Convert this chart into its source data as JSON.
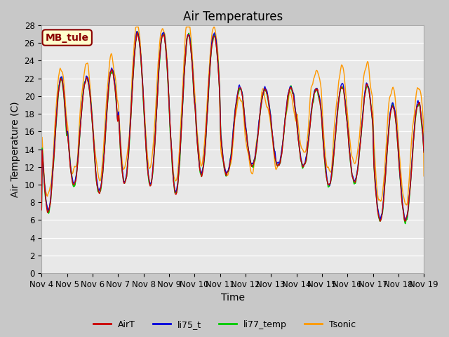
{
  "title": "Air Temperatures",
  "ylabel": "Air Temperature (C)",
  "xlabel": "Time",
  "ylim": [
    0,
    28
  ],
  "yticks": [
    0,
    2,
    4,
    6,
    8,
    10,
    12,
    14,
    16,
    18,
    20,
    22,
    24,
    26,
    28
  ],
  "xtick_labels": [
    "Nov 4",
    "Nov 5",
    "Nov 6",
    "Nov 7",
    "Nov 8",
    "Nov 9",
    "Nov 10",
    "Nov 11",
    "Nov 12",
    "Nov 13",
    "Nov 14",
    "Nov 15",
    "Nov 16",
    "Nov 17",
    "Nov 18",
    "Nov 19"
  ],
  "site_label": "MB_tule",
  "legend_entries": [
    "AirT",
    "li75_t",
    "li77_temp",
    "Tsonic"
  ],
  "line_colors": [
    "#cc0000",
    "#0000dd",
    "#00cc00",
    "#ff9900"
  ],
  "fig_facecolor": "#c8c8c8",
  "plot_facecolor": "#e8e8e8",
  "title_fontsize": 12,
  "label_fontsize": 10,
  "tick_fontsize": 8.5
}
